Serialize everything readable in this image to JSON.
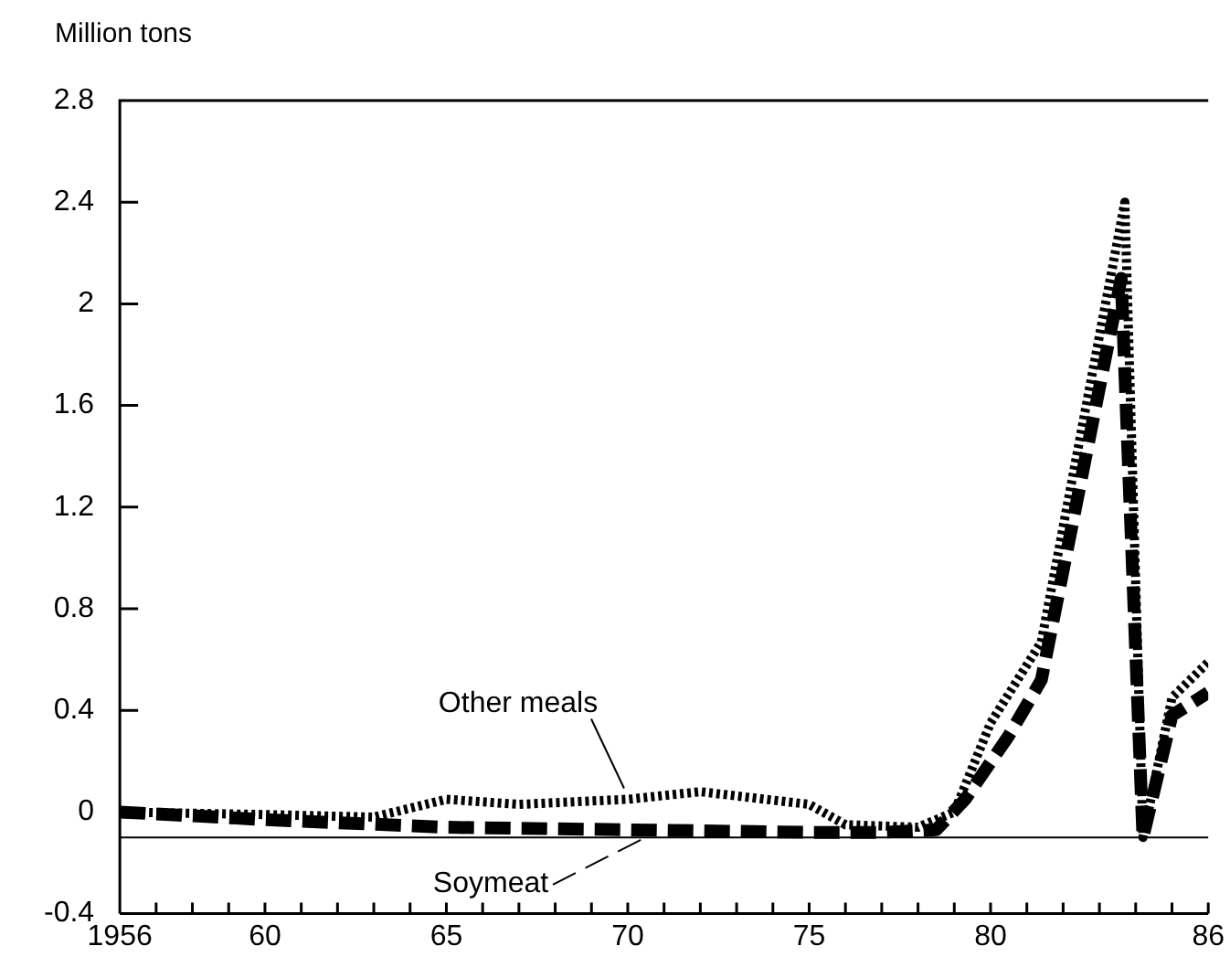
{
  "chart_data": {
    "type": "line",
    "ylabel": "Million tons",
    "xlim": [
      1956,
      1986
    ],
    "xticks": [
      {
        "value": 1956,
        "label": "1956"
      },
      {
        "value": 1957,
        "label": null
      },
      {
        "value": 1958,
        "label": null
      },
      {
        "value": 1959,
        "label": null
      },
      {
        "value": 1960,
        "label": "60"
      },
      {
        "value": 1961,
        "label": null
      },
      {
        "value": 1962,
        "label": null
      },
      {
        "value": 1963,
        "label": null
      },
      {
        "value": 1964,
        "label": null
      },
      {
        "value": 1965,
        "label": "65"
      },
      {
        "value": 1966,
        "label": null
      },
      {
        "value": 1967,
        "label": null
      },
      {
        "value": 1968,
        "label": null
      },
      {
        "value": 1969,
        "label": null
      },
      {
        "value": 1970,
        "label": "70"
      },
      {
        "value": 1971,
        "label": null
      },
      {
        "value": 1972,
        "label": null
      },
      {
        "value": 1973,
        "label": null
      },
      {
        "value": 1974,
        "label": null
      },
      {
        "value": 1975,
        "label": "75"
      },
      {
        "value": 1976,
        "label": null
      },
      {
        "value": 1977,
        "label": null
      },
      {
        "value": 1978,
        "label": null
      },
      {
        "value": 1979,
        "label": null
      },
      {
        "value": 1980,
        "label": "80"
      },
      {
        "value": 1981,
        "label": null
      },
      {
        "value": 1982,
        "label": null
      },
      {
        "value": 1983,
        "label": null
      },
      {
        "value": 1984,
        "label": null
      },
      {
        "value": 1985,
        "label": null
      },
      {
        "value": 1986,
        "label": "86"
      }
    ],
    "ylim": [
      -0.4,
      2.8
    ],
    "yticks": [
      {
        "value": -0.4,
        "label": "-0.4"
      },
      0,
      0.4,
      0.8,
      1.2,
      1.6,
      2.0,
      2.4,
      2.8
    ],
    "grid": false,
    "legend": false,
    "marker": "none",
    "ref_lines": [
      {
        "axis": "y",
        "value": -0.1,
        "color": "#000000"
      }
    ],
    "series": [
      {
        "name": "Other meals",
        "color": "#000000",
        "line_style": "dotted",
        "x": [
          1956,
          1960,
          1963,
          1965,
          1967,
          1970,
          1972,
          1975,
          1976,
          1978,
          1979,
          1980,
          1981.4,
          1983.7,
          1984.2,
          1985,
          1986
        ],
        "values": [
          0,
          -0.01,
          -0.02,
          0.05,
          0.03,
          0.05,
          0.08,
          0.03,
          -0.05,
          -0.06,
          0,
          0.35,
          0.67,
          2.4,
          -0.1,
          0.45,
          0.59
        ]
      },
      {
        "name": "Soymeat",
        "color": "#000000",
        "line_style": "dashed",
        "x": [
          1956,
          1960,
          1965,
          1970,
          1975,
          1977,
          1978.5,
          1979.3,
          1980.5,
          1981.4,
          1983.6,
          1984.2,
          1985,
          1986
        ],
        "values": [
          0,
          -0.03,
          -0.06,
          -0.07,
          -0.08,
          -0.08,
          -0.07,
          0.05,
          0.3,
          0.52,
          2.1,
          -0.1,
          0.38,
          0.47
        ]
      }
    ]
  }
}
